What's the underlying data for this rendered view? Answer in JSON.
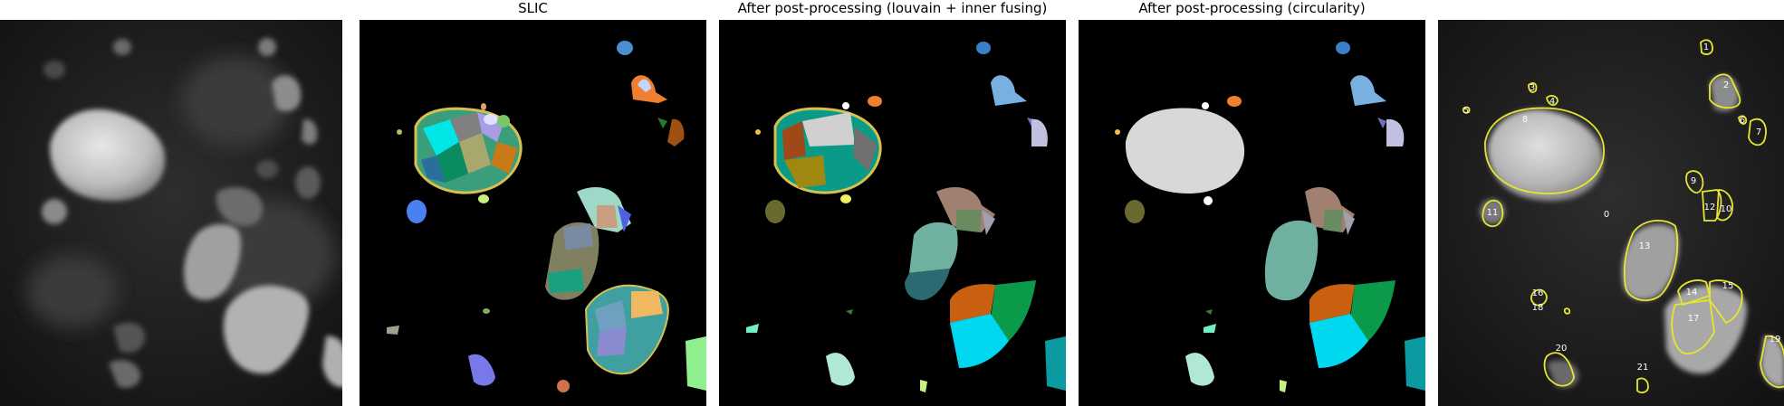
{
  "panels": [
    {
      "title": ""
    },
    {
      "title": "SLIC"
    },
    {
      "title": "After post-processing (louvain + inner fusing)"
    },
    {
      "title": "After post-processing (circularity)"
    },
    {
      "title": ""
    }
  ],
  "labels": [
    "0",
    "1",
    "2",
    "3",
    "4",
    "5",
    "6",
    "7",
    "8",
    "9",
    "10",
    "11",
    "12",
    "13",
    "14",
    "15",
    "16",
    "17",
    "18",
    "19",
    "20",
    "21"
  ],
  "colors": {
    "background": "#000000",
    "contour": "#e6e62e",
    "fused_cell": "#d8d8d8"
  }
}
